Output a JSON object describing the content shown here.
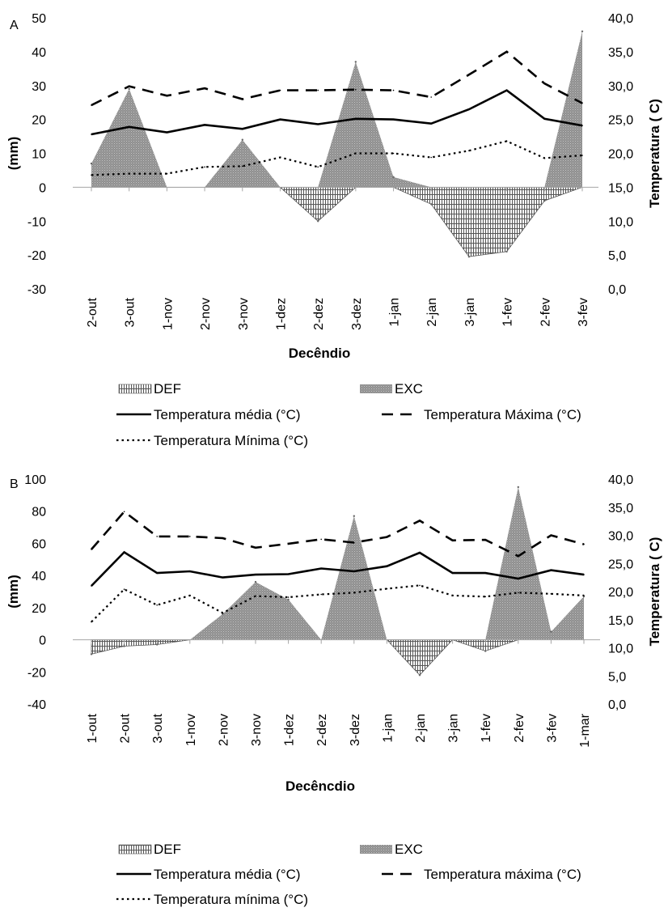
{
  "chart_data": [
    {
      "panel_label": "A",
      "type": "line",
      "categories": [
        "2-out",
        "3-out",
        "1-nov",
        "2-nov",
        "3-nov",
        "1-dez",
        "2-dez",
        "3-dez",
        "1-jan",
        "2-jan",
        "3-jan",
        "1-fev",
        "2-fev",
        "3-fev"
      ],
      "xlabel": "Decêndio",
      "ylabel_left": "(mm)",
      "ylabel_right": "Temperatura ( C)",
      "ylim_left": [
        -30,
        50
      ],
      "yticks_left": [
        "50",
        "40",
        "30",
        "20",
        "10",
        "0",
        "-10",
        "-20",
        "-30"
      ],
      "ylim_right": [
        0,
        40
      ],
      "yticks_right": [
        "40,0",
        "35,0",
        "30,0",
        "25,0",
        "20,0",
        "15,0",
        "10,0",
        "5,0",
        "0,0"
      ],
      "grid": false,
      "legend_position": "bottom",
      "series": [
        {
          "name": "DEF",
          "kind": "area",
          "axis": "left",
          "values": [
            0,
            0,
            0,
            0,
            0,
            0,
            -10,
            0,
            0,
            -5,
            -20.5,
            -19,
            -4,
            0
          ]
        },
        {
          "name": "EXC",
          "kind": "area",
          "axis": "left",
          "values": [
            7,
            29,
            0,
            0,
            14,
            0,
            0,
            37,
            3,
            0,
            0,
            0,
            0,
            46
          ]
        },
        {
          "name": "Temperatura média  (°C)",
          "kind": "line",
          "axis": "right",
          "values": [
            22.8,
            23.9,
            23.1,
            24.2,
            23.6,
            25,
            24.3,
            25.1,
            25,
            24.4,
            26.5,
            29.3,
            25.1,
            24.1
          ]
        },
        {
          "name": "Temperatura Máxima (°C)",
          "kind": "line",
          "axis": "right",
          "values": [
            27.1,
            29.9,
            28.5,
            29.6,
            28,
            29.3,
            29.3,
            29.4,
            29.3,
            28.3,
            31.6,
            35,
            30.3,
            27.4
          ]
        },
        {
          "name": "Temperatura Mínima (°C)",
          "kind": "line",
          "axis": "right",
          "values": [
            16.8,
            17,
            17,
            18,
            18.1,
            19.4,
            18,
            20,
            20,
            19.4,
            20.4,
            21.8,
            19.3,
            19.7
          ]
        }
      ]
    },
    {
      "panel_label": "B",
      "type": "line",
      "categories": [
        "1-out",
        "2-out",
        "3-out",
        "1-nov",
        "2-nov",
        "3-nov",
        "1-dez",
        "2-dez",
        "3-dez",
        "1-jan",
        "2-jan",
        "3-jan",
        "1-fev",
        "2-fev",
        "3-fev",
        "1-mar"
      ],
      "xlabel": "Decêncdio",
      "ylabel_left": "(mm)",
      "ylabel_right": "Temperatura ( C)",
      "ylim_left": [
        -40,
        100
      ],
      "yticks_left": [
        "100",
        "80",
        "60",
        "40",
        "20",
        "0",
        "-20",
        "-40"
      ],
      "ylim_right": [
        0,
        40
      ],
      "yticks_right": [
        "40,0",
        "35,0",
        "30,0",
        "25,0",
        "20,0",
        "15,0",
        "10,0",
        "5,0",
        "0,0"
      ],
      "grid": false,
      "legend_position": "bottom",
      "series": [
        {
          "name": "DEF",
          "kind": "area",
          "axis": "left",
          "values": [
            -9,
            -4,
            -3,
            0,
            0,
            0,
            0,
            0,
            0,
            0,
            -22,
            0,
            -7,
            0,
            0,
            0
          ]
        },
        {
          "name": "EXC",
          "kind": "area",
          "axis": "left",
          "values": [
            0,
            0,
            0,
            0,
            16,
            36,
            25,
            0,
            77,
            0,
            0,
            0,
            0,
            95,
            5,
            27
          ]
        },
        {
          "name": "Temperatura média (°C)",
          "kind": "line",
          "axis": "right",
          "values": [
            21,
            27,
            23.3,
            23.6,
            22.5,
            23,
            23.1,
            24.1,
            23.6,
            24.5,
            26.9,
            23.3,
            23.3,
            22.3,
            23.8,
            23
          ]
        },
        {
          "name": "Temperatura máxima (°C)",
          "kind": "line",
          "axis": "right",
          "values": [
            27.5,
            34.2,
            29.8,
            29.8,
            29.5,
            27.8,
            28.5,
            29.3,
            28.7,
            29.7,
            32.6,
            29.1,
            29.2,
            26.3,
            30,
            28.4
          ]
        },
        {
          "name": "Temperatura mínima (°C)",
          "kind": "line",
          "axis": "right",
          "values": [
            14.6,
            20.4,
            17.6,
            19.3,
            16.2,
            19.2,
            19,
            19.5,
            19.8,
            20.5,
            21.1,
            19.3,
            19.1,
            19.8,
            19.6,
            19.3
          ]
        }
      ]
    }
  ]
}
